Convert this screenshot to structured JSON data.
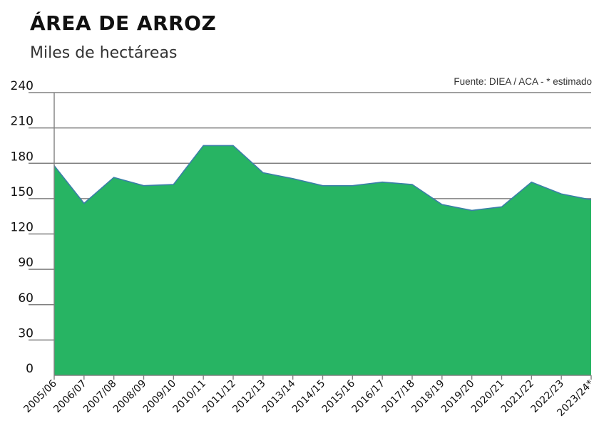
{
  "header": {
    "title": "ÁREA DE ARROZ",
    "subtitle": "Miles de hectáreas",
    "source": "Fuente: DIEA / ACA - * estimado"
  },
  "colors": {
    "area_fill": "#27b463",
    "area_stroke": "#3b7fa8",
    "gridline": "#808080"
  },
  "chart_data": {
    "type": "area",
    "title": "ÁREA DE ARROZ",
    "subtitle": "Miles de hectáreas",
    "xlabel": "",
    "ylabel": "",
    "ylim": [
      0,
      240
    ],
    "yticks": [
      0,
      30,
      60,
      90,
      120,
      150,
      180,
      210,
      240
    ],
    "grid": true,
    "legend": "none",
    "categories": [
      "2005/06",
      "2006/07",
      "2007/08",
      "2008/09",
      "2009/10",
      "2010/11",
      "2011/12",
      "2012/13",
      "2013/14",
      "2014/15",
      "2015/16",
      "2016/17",
      "2017/18",
      "2018/19",
      "2019/20",
      "2020/21",
      "2021/22",
      "2022/23",
      "2023/24*"
    ],
    "series": [
      {
        "values": [
          178,
          146,
          168,
          161,
          162,
          195,
          195,
          172,
          167,
          161,
          161,
          164,
          162,
          145,
          140,
          143,
          164,
          154,
          149
        ]
      }
    ]
  }
}
